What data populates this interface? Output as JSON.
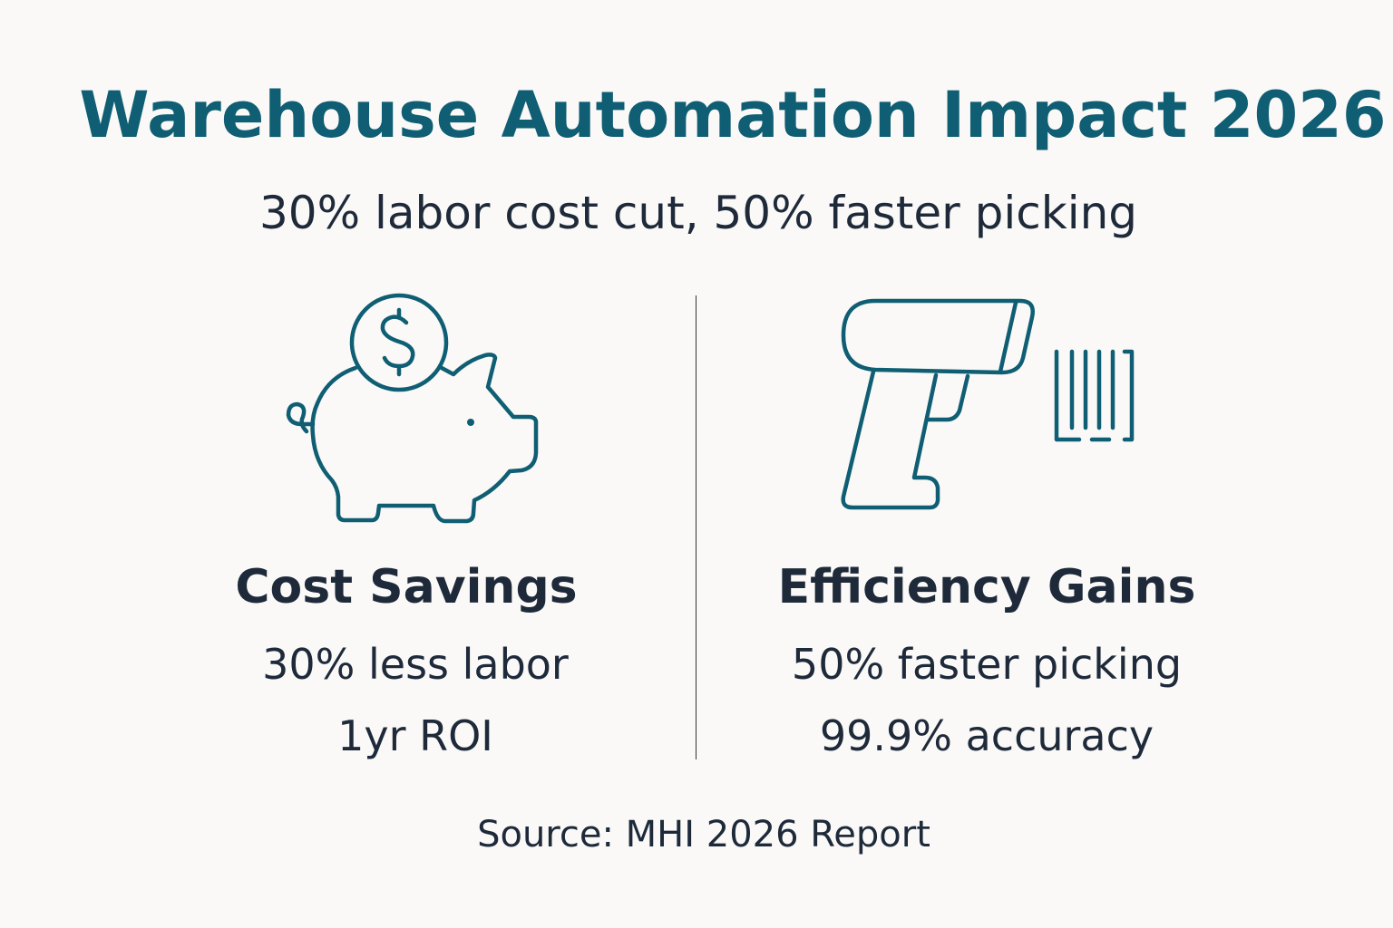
{
  "title": "Warehouse Automation Impact 2026",
  "subtitle": "30% labor cost cut, 50% faster picking",
  "left": {
    "icon": "piggy-bank-with-dollar-coin-icon",
    "heading": "Cost Savings",
    "lines": [
      "30% less labor",
      "1yr ROI"
    ]
  },
  "right": {
    "icon": "barcode-scanner-icon",
    "heading": "Efficiency Gains",
    "lines": [
      "50% faster picking",
      "99.9% accuracy"
    ]
  },
  "source": "Source: MHI 2026 Report",
  "colors": {
    "accent": "#0f5e73",
    "text": "#1e2a3a",
    "background": "#faf9f7"
  }
}
